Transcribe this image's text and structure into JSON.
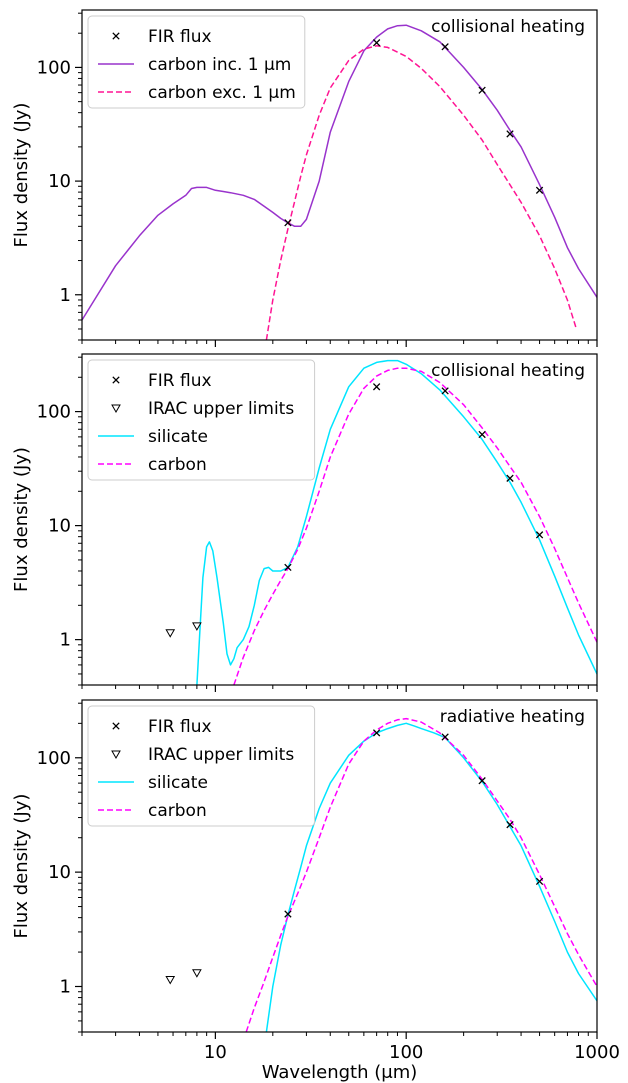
{
  "chart_data": [
    {
      "type": "line",
      "title": "",
      "annotation": "collisional heating",
      "xlabel": "Wavelength (μm)",
      "ylabel": "Flux density (Jy)",
      "xscale": "log",
      "yscale": "log",
      "xlim": [
        2,
        1000
      ],
      "ylim": [
        0.4,
        320
      ],
      "x_ticks": [
        10,
        100,
        1000
      ],
      "x_tick_labels": [
        "",
        "",
        ""
      ],
      "y_ticks": [
        1,
        10,
        100
      ],
      "y_tick_labels": [
        "1",
        "10",
        "100"
      ],
      "legend_position": "top-left",
      "points": [
        {
          "name": "FIR flux",
          "color": "#000000",
          "marker": "x",
          "x": [
            24,
            70,
            160,
            250,
            350,
            500
          ],
          "y": [
            4.3,
            165,
            152,
            63,
            26,
            8.3
          ]
        }
      ],
      "series": [
        {
          "name": "carbon inc. 1 μm",
          "style": "solid",
          "color": "#9933cc",
          "x": [
            2,
            3,
            4,
            5,
            6,
            7,
            7.5,
            8,
            9,
            10,
            11,
            12,
            14,
            16,
            18,
            20,
            22,
            24,
            26,
            28,
            30,
            35,
            40,
            50,
            60,
            70,
            80,
            90,
            100,
            120,
            150,
            200,
            250,
            300,
            350,
            400,
            500,
            600,
            700,
            800,
            1000
          ],
          "y": [
            0.6,
            1.8,
            3.3,
            5.0,
            6.3,
            7.5,
            8.6,
            8.8,
            8.8,
            8.3,
            8.1,
            7.9,
            7.5,
            6.9,
            6.0,
            5.3,
            4.7,
            4.3,
            4.0,
            4.0,
            4.6,
            10,
            27,
            75,
            140,
            185,
            218,
            233,
            235,
            210,
            168,
            100,
            64,
            42,
            28,
            20,
            9.3,
            4.8,
            2.6,
            1.7,
            0.95
          ]
        },
        {
          "name": "carbon exc. 1 μm",
          "style": "dashed",
          "color": "#ff1493",
          "x": [
            18.5,
            20,
            22,
            24,
            26,
            28,
            30,
            35,
            40,
            50,
            60,
            70,
            80,
            100,
            120,
            150,
            200,
            250,
            300,
            400,
            500,
            600,
            700,
            780
          ],
          "y": [
            0.4,
            0.9,
            2.0,
            3.8,
            6.6,
            11,
            17,
            38,
            66,
            115,
            145,
            155,
            150,
            125,
            98,
            68,
            38,
            23,
            14,
            6.5,
            3.3,
            1.7,
            0.9,
            0.5
          ]
        }
      ]
    },
    {
      "type": "line",
      "title": "",
      "annotation": "collisional heating",
      "xlabel": "Wavelength (μm)",
      "ylabel": "Flux density (Jy)",
      "xscale": "log",
      "yscale": "log",
      "xlim": [
        2,
        1000
      ],
      "ylim": [
        0.4,
        320
      ],
      "x_ticks": [
        10,
        100,
        1000
      ],
      "x_tick_labels": [
        "",
        "",
        ""
      ],
      "y_ticks": [
        1,
        10,
        100
      ],
      "y_tick_labels": [
        "1",
        "10",
        "100"
      ],
      "legend_position": "top-left",
      "points": [
        {
          "name": "FIR flux",
          "color": "#000000",
          "marker": "x",
          "x": [
            24,
            70,
            160,
            250,
            350,
            500
          ],
          "y": [
            4.3,
            165,
            152,
            63,
            26,
            8.3
          ]
        },
        {
          "name": "IRAC upper limits",
          "color": "#000000",
          "marker": "triangle-down",
          "x": [
            5.8,
            8.0
          ],
          "y": [
            1.15,
            1.32
          ]
        }
      ],
      "series": [
        {
          "name": "silicate",
          "style": "solid",
          "color": "#00e5ff",
          "x": [
            8.0,
            8.3,
            8.6,
            9.0,
            9.3,
            9.7,
            10.2,
            11,
            11.5,
            12,
            12.5,
            13,
            14,
            15,
            16,
            17,
            18,
            19,
            20,
            22,
            24,
            27,
            30,
            35,
            40,
            50,
            60,
            70,
            80,
            90,
            100,
            120,
            150,
            200,
            250,
            300,
            350,
            400,
            500,
            600,
            700,
            800,
            1000
          ],
          "y": [
            0.4,
            1.2,
            3.5,
            6.5,
            7.2,
            6.0,
            3.5,
            1.4,
            0.75,
            0.6,
            0.68,
            0.85,
            1.0,
            1.3,
            2.0,
            3.3,
            4.2,
            4.3,
            4.0,
            4.0,
            4.3,
            6.5,
            12,
            32,
            70,
            165,
            240,
            270,
            280,
            280,
            260,
            215,
            155,
            90,
            57,
            36,
            24,
            16,
            7.5,
            3.6,
            1.9,
            1.1,
            0.5
          ]
        },
        {
          "name": "carbon",
          "style": "dashed",
          "color": "#ff00ff",
          "x": [
            12.5,
            14,
            16,
            18,
            20,
            22,
            24,
            27,
            30,
            35,
            40,
            50,
            60,
            70,
            80,
            90,
            100,
            120,
            150,
            200,
            250,
            300,
            350,
            400,
            500,
            600,
            700,
            800,
            1000
          ],
          "y": [
            0.4,
            0.7,
            1.2,
            1.8,
            2.5,
            3.3,
            4.2,
            6.2,
            9.5,
            20,
            40,
            95,
            160,
            205,
            230,
            240,
            240,
            225,
            180,
            115,
            72,
            48,
            33,
            24,
            12,
            6.3,
            3.5,
            2.1,
            0.95
          ]
        }
      ]
    },
    {
      "type": "line",
      "title": "",
      "annotation": "radiative heating",
      "xlabel": "Wavelength (μm)",
      "ylabel": "Flux density (Jy)",
      "xscale": "log",
      "yscale": "log",
      "xlim": [
        2,
        1000
      ],
      "ylim": [
        0.4,
        320
      ],
      "x_ticks": [
        10,
        100,
        1000
      ],
      "x_tick_labels": [
        "10",
        "100",
        "1000"
      ],
      "y_ticks": [
        1,
        10,
        100
      ],
      "y_tick_labels": [
        "1",
        "10",
        "100"
      ],
      "legend_position": "top-left",
      "points": [
        {
          "name": "FIR flux",
          "color": "#000000",
          "marker": "x",
          "x": [
            24,
            70,
            160,
            250,
            350,
            500
          ],
          "y": [
            4.3,
            165,
            152,
            63,
            26,
            8.3
          ]
        },
        {
          "name": "IRAC upper limits",
          "color": "#000000",
          "marker": "triangle-down",
          "x": [
            5.8,
            8.0
          ],
          "y": [
            1.15,
            1.32
          ]
        }
      ],
      "series": [
        {
          "name": "silicate",
          "style": "solid",
          "color": "#00e5ff",
          "x": [
            18.5,
            20,
            22,
            24,
            26,
            28,
            30,
            35,
            40,
            50,
            60,
            70,
            80,
            90,
            100,
            110,
            120,
            140,
            160,
            200,
            250,
            300,
            350,
            400,
            500,
            600,
            700,
            800,
            1000
          ],
          "y": [
            0.4,
            1.0,
            2.3,
            4.2,
            7.0,
            11,
            17,
            36,
            60,
            105,
            140,
            165,
            180,
            192,
            200,
            190,
            180,
            165,
            150,
            100,
            62,
            39,
            25,
            17,
            7.5,
            3.7,
            2.0,
            1.3,
            0.75
          ]
        },
        {
          "name": "carbon",
          "style": "dashed",
          "color": "#ff00ff",
          "x": [
            14.5,
            16,
            18,
            20,
            22,
            24,
            27,
            30,
            35,
            40,
            50,
            60,
            70,
            80,
            90,
            100,
            120,
            150,
            200,
            250,
            300,
            350,
            400,
            500,
            600,
            700,
            800,
            1000
          ],
          "y": [
            0.4,
            0.65,
            1.1,
            1.8,
            2.8,
            4.1,
            6.5,
            10,
            20,
            37,
            88,
            140,
            175,
            200,
            215,
            220,
            205,
            165,
            105,
            65,
            42,
            29,
            20,
            9.5,
            5.0,
            2.9,
            1.9,
            1.0
          ]
        }
      ]
    }
  ]
}
